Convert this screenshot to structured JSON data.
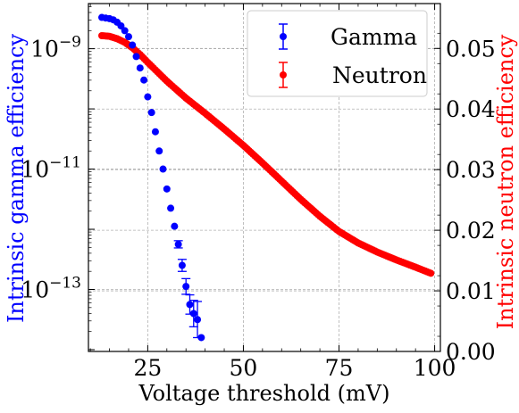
{
  "chart_data": {
    "type": "scatter",
    "xlabel": "Voltage threshold (mV)",
    "ylabel_left": "Intrinsic gamma efficiency",
    "ylabel_right": "Intrinsic neutron efficiency",
    "xlim": [
      9.5,
      101.5
    ],
    "x_ticks": [
      25,
      50,
      75,
      100
    ],
    "y_left_scale": "log",
    "y_left_log10_range": [
      -14.03,
      -8.25
    ],
    "y_left_ticks": [
      {
        "label": "10",
        "exp": "−9",
        "value": -9
      },
      {
        "label": "10",
        "exp": "−11",
        "value": -11
      },
      {
        "label": "10",
        "exp": "−13",
        "value": -13
      }
    ],
    "y_right_lim": [
      0.0,
      0.0574
    ],
    "y_right_ticks": [
      "0.00",
      "0.01",
      "0.02",
      "0.03",
      "0.04",
      "0.05"
    ],
    "grid": true,
    "legend_placement": "top-right",
    "colors": {
      "gamma": "#0000ff",
      "neutron": "#ff0000",
      "grid": "#b0b0b0"
    },
    "series": [
      {
        "name": "Gamma",
        "axis": "left",
        "color": "#0000ff",
        "x": [
          13,
          14,
          15,
          16,
          17,
          18,
          19,
          20,
          21,
          22,
          23,
          24,
          25,
          26,
          27,
          28,
          29,
          30,
          31,
          32,
          33,
          34,
          35,
          36,
          37,
          38,
          39
        ],
        "log10_y": [
          -8.48,
          -8.49,
          -8.5,
          -8.52,
          -8.56,
          -8.62,
          -8.7,
          -8.8,
          -8.94,
          -9.13,
          -9.32,
          -9.52,
          -9.8,
          -10.06,
          -10.38,
          -10.7,
          -11.0,
          -11.33,
          -11.65,
          -11.95,
          -12.25,
          -12.6,
          -12.95,
          -13.25,
          -13.4,
          -13.5,
          -13.8
        ],
        "log10_yerr": [
          0,
          0,
          0,
          0,
          0,
          0,
          0,
          0,
          0,
          0,
          0,
          0,
          0,
          0,
          0,
          0,
          0,
          0,
          0,
          0,
          0.06,
          0.1,
          0.13,
          0.16,
          0.22,
          0.3,
          0
        ]
      },
      {
        "name": "Neutron",
        "axis": "right",
        "color": "#ff0000",
        "x": [
          13,
          15,
          17,
          19,
          21,
          23,
          25,
          30,
          35,
          40,
          45,
          50,
          55,
          60,
          65,
          70,
          75,
          80,
          85,
          90,
          95,
          99
        ],
        "y": [
          0.0521,
          0.052,
          0.0516,
          0.051,
          0.0501,
          0.049,
          0.0477,
          0.0446,
          0.0418,
          0.0393,
          0.0367,
          0.034,
          0.0311,
          0.0281,
          0.0251,
          0.0223,
          0.0198,
          0.0179,
          0.0164,
          0.0151,
          0.0139,
          0.0129
        ]
      }
    ]
  }
}
